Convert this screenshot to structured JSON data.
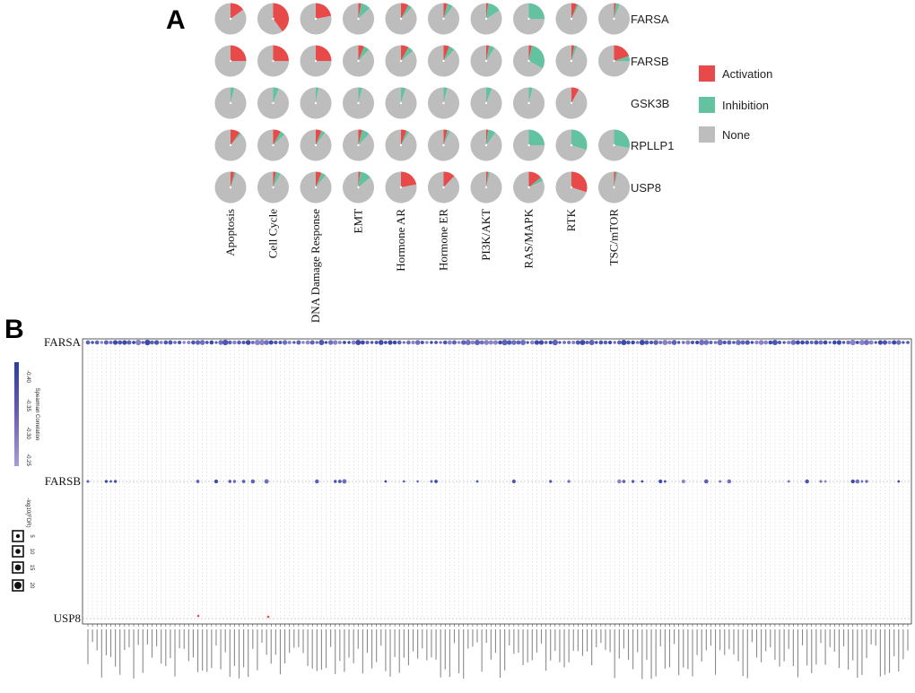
{
  "panel_a": {
    "letter": "A",
    "chart_type": "pie-grid",
    "categories": [
      "Activation",
      "Inhibition",
      "None"
    ],
    "colors": {
      "activation": "#e84a4a",
      "inhibition": "#63c2a0",
      "none": "#bdbdbd"
    },
    "columns": [
      "Apoptosis",
      "Cell Cycle",
      "DNA Damage Response",
      "EMT",
      "Hormone AR",
      "Hormone ER",
      "PI3K/AKT",
      "RAS/MAPK",
      "RTK",
      "TSC/mTOR"
    ],
    "rows": [
      {
        "gene": "FARSA",
        "values": [
          [
            0.15,
            0,
            0.85
          ],
          [
            0.4,
            0,
            0.6
          ],
          [
            0.22,
            0,
            0.78
          ],
          [
            0.03,
            0.1,
            0.87
          ],
          [
            0.08,
            0.04,
            0.88
          ],
          [
            0.04,
            0.06,
            0.9
          ],
          [
            0.02,
            0.14,
            0.84
          ],
          [
            0,
            0.25,
            0.75
          ],
          [
            0.06,
            0.02,
            0.92
          ],
          [
            0.02,
            0.04,
            0.94
          ]
        ]
      },
      {
        "gene": "FARSB",
        "values": [
          [
            0.25,
            0,
            0.75
          ],
          [
            0.25,
            0,
            0.75
          ],
          [
            0.25,
            0,
            0.75
          ],
          [
            0.06,
            0.06,
            0.88
          ],
          [
            0.08,
            0.06,
            0.86
          ],
          [
            0.06,
            0.06,
            0.88
          ],
          [
            0.03,
            0.06,
            0.91
          ],
          [
            0.03,
            0.3,
            0.67
          ],
          [
            0.03,
            0.03,
            0.94
          ],
          [
            0.2,
            0.05,
            0.75
          ]
        ]
      },
      {
        "gene": "GSK3B",
        "values": [
          [
            0,
            0.04,
            0.96
          ],
          [
            0,
            0.06,
            0.94
          ],
          [
            0,
            0.03,
            0.97
          ],
          [
            0,
            0.04,
            0.96
          ],
          [
            0,
            0.05,
            0.95
          ],
          [
            0,
            0.04,
            0.96
          ],
          [
            0,
            0.06,
            0.94
          ],
          [
            0,
            0.04,
            0.96
          ],
          [
            0.08,
            0,
            0.92
          ],
          null
        ]
      },
      {
        "gene": "RPLLP1",
        "values": [
          [
            0.1,
            0.02,
            0.88
          ],
          [
            0.08,
            0.05,
            0.87
          ],
          [
            0.06,
            0.04,
            0.9
          ],
          [
            0.04,
            0.08,
            0.88
          ],
          [
            0.06,
            0.03,
            0.91
          ],
          [
            0.04,
            0.03,
            0.93
          ],
          [
            0.02,
            0.08,
            0.9
          ],
          [
            0,
            0.25,
            0.75
          ],
          [
            0,
            0.3,
            0.7
          ],
          [
            0,
            0.28,
            0.72
          ]
        ]
      },
      {
        "gene": "USP8",
        "values": [
          [
            0.04,
            0.02,
            0.94
          ],
          [
            0.03,
            0.05,
            0.92
          ],
          [
            0.06,
            0.05,
            0.89
          ],
          [
            0.02,
            0.12,
            0.86
          ],
          [
            0.22,
            0,
            0.78
          ],
          [
            0.12,
            0,
            0.88
          ],
          [
            0.02,
            0.02,
            0.96
          ],
          [
            0.14,
            0.04,
            0.82
          ],
          [
            0.3,
            0,
            0.7
          ],
          [
            0.02,
            0.02,
            0.96
          ]
        ]
      }
    ]
  },
  "panel_b": {
    "letter": "B",
    "chart_type": "dot-matrix",
    "rows": [
      "FARSA",
      "FARSB",
      "USP8"
    ],
    "colorbar_title": "Spearman Correlation",
    "colorbar_ticks": [
      "-0.40",
      "-0.35",
      "-0.30",
      "-0.25"
    ],
    "size_legend_title": "-log10(FDR)",
    "size_legend_ticks": [
      "5",
      "10",
      "15",
      "20"
    ],
    "n_drugs": 180,
    "x_tick_label_style": "drug compound names (illegible)"
  }
}
